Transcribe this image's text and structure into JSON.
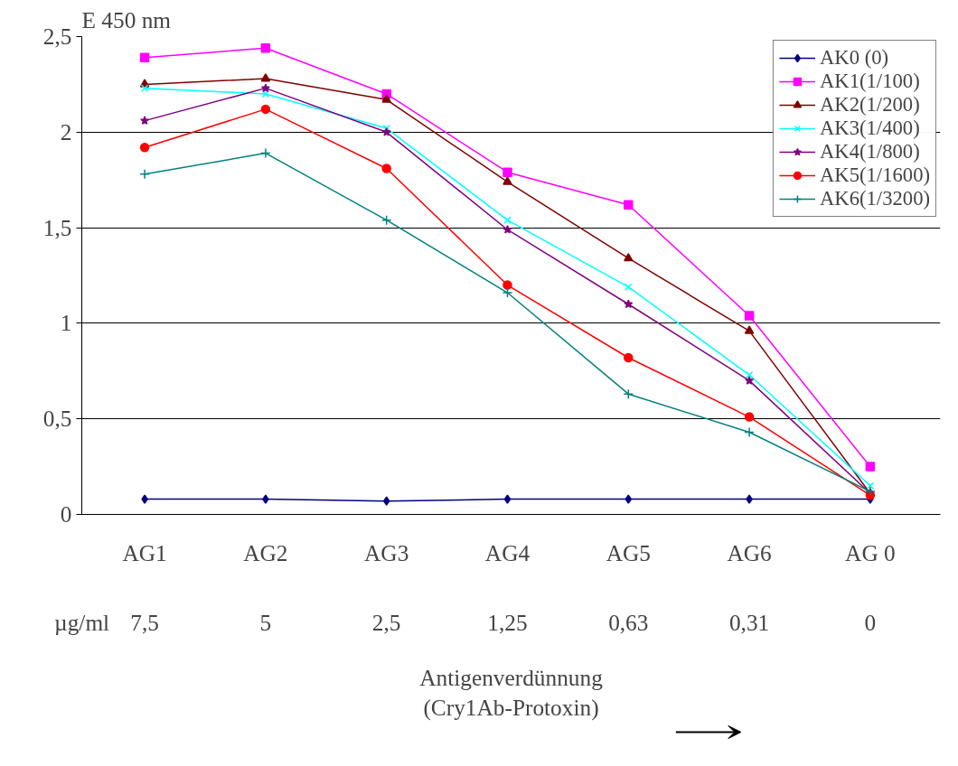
{
  "chart_data": {
    "type": "line",
    "ylabel": "E 450 nm",
    "xlabel": "Antigenverdünnung\n(Cry1Ab-Protoxin)",
    "categories": [
      "AG1",
      "AG2",
      "AG3",
      "AG4",
      "AG5",
      "AG6",
      "AG 0"
    ],
    "ylim": [
      0,
      2.5
    ],
    "yticks": [
      0,
      {
        "value": 0.5,
        "label": "0,5"
      },
      1,
      {
        "value": 1.5,
        "label": "1,5"
      },
      2,
      {
        "value": 2.5,
        "label": "2,5"
      }
    ],
    "grid": "y",
    "legend": "top right",
    "series": [
      {
        "name": "AK0 (0)",
        "color": "#000080",
        "marker": "diamond",
        "values": [
          0.08,
          0.08,
          0.07,
          0.08,
          0.08,
          0.08,
          0.08
        ]
      },
      {
        "name": "AK1(1/100)",
        "color": "#ff00ff",
        "marker": "square",
        "values": [
          2.39,
          2.44,
          2.2,
          1.79,
          1.62,
          1.04,
          0.25
        ]
      },
      {
        "name": "AK2(1/200)",
        "color": "#800000",
        "marker": "triangle",
        "values": [
          2.25,
          2.28,
          2.17,
          1.74,
          1.34,
          0.96,
          0.11
        ]
      },
      {
        "name": "AK3(1/400)",
        "color": "#00ffff",
        "marker": "x",
        "values": [
          2.23,
          2.2,
          2.02,
          1.54,
          1.19,
          0.73,
          0.15
        ]
      },
      {
        "name": "AK4(1/800)",
        "color": "#800080",
        "marker": "star",
        "values": [
          2.06,
          2.23,
          2.0,
          1.49,
          1.1,
          0.7,
          0.11
        ]
      },
      {
        "name": "AK5(1/1600)",
        "color": "#ff0000",
        "marker": "circle",
        "values": [
          1.92,
          2.12,
          1.81,
          1.2,
          0.82,
          0.51,
          0.1
        ]
      },
      {
        "name": "AK6(1/3200)",
        "color": "#008080",
        "marker": "cross",
        "values": [
          1.78,
          1.89,
          1.54,
          1.16,
          0.63,
          0.43,
          0.12
        ]
      }
    ],
    "annotations": [
      "µg/ml",
      "7,5",
      "5",
      "2,5",
      "1,25",
      "0,63",
      "0,31",
      "0"
    ]
  }
}
